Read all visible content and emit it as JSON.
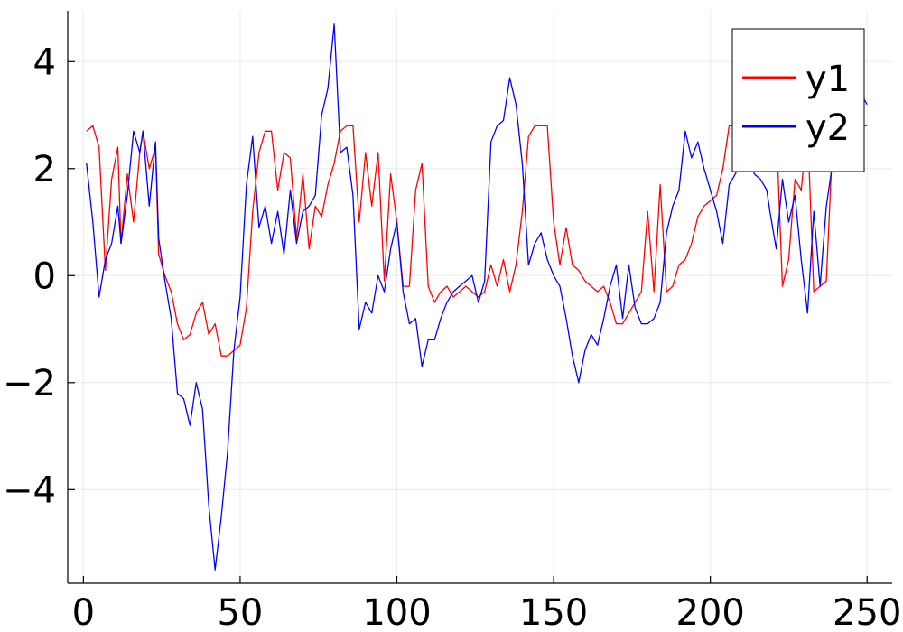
{
  "chart_data": {
    "type": "line",
    "title": "",
    "xlabel": "",
    "ylabel": "",
    "xlim": [
      -5,
      258
    ],
    "ylim": [
      -5.75,
      4.95
    ],
    "x_ticks": [
      0,
      50,
      100,
      150,
      200,
      250
    ],
    "x_tick_labels": [
      "0",
      "50",
      "100",
      "150",
      "200",
      "250"
    ],
    "y_ticks": [
      -4,
      -2,
      0,
      2,
      4
    ],
    "y_tick_labels": [
      "−4",
      "−2",
      "0",
      "2",
      "4"
    ],
    "grid": true,
    "legend": {
      "placement": "top-right"
    },
    "series": [
      {
        "name": "y1",
        "color": "#ff0000",
        "x": [
          1,
          3,
          5,
          7,
          9,
          11,
          12,
          14,
          16,
          18,
          19,
          21,
          23,
          24,
          26,
          28,
          30,
          32,
          34,
          36,
          38,
          40,
          42,
          44,
          46,
          48,
          50,
          52,
          54,
          56,
          58,
          60,
          62,
          64,
          66,
          68,
          70,
          72,
          74,
          76,
          78,
          80,
          82,
          84,
          86,
          88,
          90,
          92,
          94,
          96,
          98,
          100,
          102,
          104,
          106,
          108,
          110,
          112,
          114,
          116,
          118,
          120,
          122,
          124,
          126,
          128,
          130,
          132,
          134,
          136,
          138,
          140,
          142,
          144,
          146,
          148,
          150,
          152,
          154,
          156,
          158,
          160,
          162,
          164,
          166,
          168,
          170,
          172,
          174,
          176,
          178,
          180,
          182,
          184,
          186,
          188,
          190,
          192,
          194,
          196,
          198,
          200,
          202,
          204,
          206,
          208,
          210,
          212,
          214,
          216,
          218,
          219,
          221,
          223,
          225,
          227,
          229,
          231,
          233,
          235,
          237,
          239,
          241,
          243,
          245,
          247,
          249,
          250
        ],
        "values": [
          2.7,
          2.8,
          2.4,
          0.1,
          1.8,
          2.4,
          0.6,
          1.9,
          1.0,
          2.3,
          2.7,
          2.0,
          2.4,
          0.4,
          0.0,
          -0.3,
          -0.9,
          -1.2,
          -1.1,
          -0.7,
          -0.5,
          -1.1,
          -0.9,
          -1.5,
          -1.5,
          -1.4,
          -1.3,
          -0.6,
          1.2,
          2.3,
          2.7,
          2.7,
          1.6,
          2.3,
          2.2,
          0.7,
          1.9,
          0.5,
          1.3,
          1.1,
          1.7,
          2.1,
          2.7,
          2.8,
          2.8,
          1.0,
          2.3,
          1.3,
          2.3,
          -0.1,
          1.9,
          1.0,
          -0.2,
          -0.2,
          1.6,
          2.1,
          -0.2,
          -0.5,
          -0.3,
          -0.2,
          -0.4,
          -0.3,
          -0.2,
          -0.3,
          -0.4,
          -0.3,
          0.2,
          -0.2,
          0.3,
          -0.3,
          0.2,
          1.2,
          2.6,
          2.8,
          2.8,
          2.8,
          1.0,
          0.2,
          0.9,
          0.2,
          0.1,
          -0.1,
          -0.2,
          -0.3,
          -0.2,
          -0.5,
          -0.9,
          -0.9,
          -0.7,
          -0.5,
          -0.3,
          1.2,
          -0.3,
          1.7,
          -0.3,
          -0.2,
          0.2,
          0.3,
          0.6,
          1.1,
          1.3,
          1.4,
          1.5,
          2.0,
          2.8,
          2.8,
          2.8,
          2.8,
          2.6,
          2.8,
          2.8,
          2.8,
          2.8,
          -0.2,
          0.3,
          1.8,
          1.6,
          2.8,
          -0.3,
          -0.2,
          -0.1,
          2.5,
          2.8,
          2.8,
          2.8,
          2.8,
          2.8,
          2.8
        ]
      },
      {
        "name": "y2",
        "color": "#0000ff",
        "x": [
          1,
          3,
          5,
          7,
          9,
          11,
          12,
          14,
          16,
          18,
          19,
          21,
          23,
          24,
          26,
          28,
          30,
          32,
          34,
          36,
          38,
          40,
          42,
          44,
          46,
          48,
          50,
          52,
          54,
          56,
          58,
          60,
          62,
          64,
          66,
          68,
          70,
          72,
          74,
          76,
          78,
          80,
          82,
          84,
          86,
          88,
          90,
          92,
          94,
          96,
          98,
          100,
          102,
          104,
          106,
          108,
          110,
          112,
          114,
          116,
          118,
          120,
          122,
          124,
          126,
          128,
          130,
          132,
          134,
          136,
          138,
          140,
          142,
          144,
          146,
          148,
          150,
          152,
          154,
          156,
          158,
          160,
          162,
          164,
          166,
          168,
          170,
          172,
          174,
          176,
          178,
          180,
          182,
          184,
          186,
          188,
          190,
          192,
          194,
          196,
          198,
          200,
          202,
          204,
          206,
          208,
          210,
          212,
          214,
          216,
          218,
          219,
          221,
          223,
          225,
          227,
          229,
          231,
          233,
          235,
          237,
          239,
          241,
          243,
          245,
          247,
          249,
          250
        ],
        "values": [
          2.1,
          1.0,
          -0.4,
          0.3,
          0.6,
          1.3,
          0.6,
          1.5,
          2.7,
          2.3,
          2.7,
          1.3,
          2.5,
          0.7,
          -0.1,
          -0.8,
          -2.2,
          -2.3,
          -2.8,
          -2.0,
          -2.5,
          -4.3,
          -5.5,
          -4.5,
          -3.3,
          -1.4,
          -0.4,
          1.7,
          2.6,
          0.9,
          1.3,
          0.6,
          1.2,
          0.4,
          1.6,
          0.6,
          1.2,
          1.3,
          1.5,
          3.0,
          3.5,
          4.7,
          2.3,
          2.4,
          1.5,
          -1.0,
          -0.5,
          -0.7,
          0.0,
          -0.3,
          0.5,
          1.0,
          -0.3,
          -0.9,
          -0.8,
          -1.7,
          -1.2,
          -1.2,
          -0.8,
          -0.5,
          -0.3,
          -0.2,
          -0.1,
          0.0,
          -0.5,
          -0.1,
          2.5,
          2.8,
          2.9,
          3.7,
          3.2,
          2.1,
          0.2,
          0.6,
          0.8,
          0.3,
          0.0,
          -0.2,
          -0.8,
          -1.5,
          -2.0,
          -1.4,
          -1.1,
          -1.3,
          -0.8,
          -0.2,
          0.2,
          -0.8,
          0.2,
          -0.6,
          -0.9,
          -0.9,
          -0.8,
          -0.5,
          0.8,
          1.3,
          1.6,
          2.7,
          2.2,
          2.5,
          2.0,
          1.6,
          1.2,
          0.6,
          1.7,
          1.9,
          2.2,
          2.3,
          1.9,
          1.8,
          1.6,
          1.2,
          0.5,
          1.8,
          1.0,
          1.5,
          0.3,
          -0.7,
          1.2,
          -0.2,
          1.3,
          2.1,
          2.8,
          3.0,
          3.1,
          3.2,
          3.3,
          3.2
        ]
      }
    ]
  }
}
